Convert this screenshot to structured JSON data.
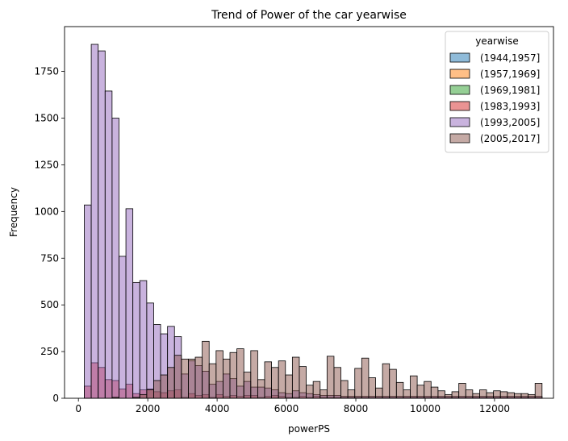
{
  "chart_data": {
    "type": "bar",
    "title": "Trend of Power of the car yearwise",
    "xlabel": "powerPS",
    "ylabel": "Frequency",
    "xlim": [
      -400,
      13700
    ],
    "ylim": [
      0,
      1990
    ],
    "x_ticks": [
      0,
      2000,
      4000,
      6000,
      8000,
      10000,
      12000
    ],
    "y_ticks": [
      0,
      250,
      500,
      750,
      1000,
      1250,
      1500,
      1750
    ],
    "bin_start": 170,
    "bin_width": 200,
    "legend": {
      "title": "yearwise",
      "placement": "top-right"
    },
    "grid": false,
    "series": [
      {
        "name": "(1944,1957]",
        "color": "#1f77b4",
        "values": [
          0,
          0,
          0,
          0,
          0,
          0,
          0,
          0,
          0,
          0,
          0,
          0,
          0,
          0,
          0,
          0,
          0,
          0,
          0,
          0,
          0,
          0,
          0,
          0,
          0,
          0,
          0,
          0,
          0,
          0,
          0,
          0,
          0,
          0,
          0,
          0,
          0,
          0,
          0,
          0,
          0,
          0,
          0,
          0,
          0,
          0,
          0,
          0,
          0,
          0,
          0,
          0,
          0,
          0,
          0,
          0,
          0,
          0,
          0,
          0,
          0,
          0,
          0,
          0,
          0,
          0
        ]
      },
      {
        "name": "(1957,1969]",
        "color": "#ff7f0e",
        "values": [
          0,
          0,
          0,
          0,
          0,
          0,
          0,
          0,
          0,
          0,
          0,
          0,
          0,
          0,
          0,
          0,
          0,
          0,
          0,
          0,
          0,
          0,
          0,
          0,
          0,
          0,
          0,
          0,
          0,
          0,
          0,
          0,
          0,
          0,
          0,
          0,
          0,
          0,
          0,
          0,
          0,
          0,
          0,
          0,
          0,
          0,
          0,
          0,
          0,
          0,
          0,
          0,
          0,
          0,
          0,
          0,
          0,
          0,
          0,
          0,
          0,
          0,
          0,
          0,
          0,
          0
        ]
      },
      {
        "name": "(1969,1981]",
        "color": "#2ca02c",
        "values": [
          0,
          0,
          0,
          0,
          0,
          0,
          0,
          0,
          0,
          0,
          0,
          0,
          0,
          0,
          0,
          0,
          0,
          0,
          0,
          0,
          0,
          0,
          0,
          0,
          0,
          0,
          0,
          0,
          0,
          0,
          0,
          0,
          0,
          0,
          0,
          0,
          0,
          0,
          0,
          0,
          0,
          0,
          0,
          0,
          0,
          0,
          0,
          0,
          0,
          0,
          0,
          0,
          0,
          0,
          0,
          0,
          0,
          0,
          0,
          0,
          0,
          0,
          0,
          0,
          0,
          0
        ]
      },
      {
        "name": "(1983,1993]",
        "color": "#d62728",
        "values": [
          65,
          190,
          165,
          100,
          95,
          50,
          75,
          25,
          45,
          50,
          35,
          30,
          40,
          45,
          5,
          25,
          15,
          20,
          5,
          20,
          10,
          15,
          10,
          15,
          15,
          5,
          10,
          15,
          10,
          5,
          5,
          10,
          5,
          10,
          5,
          5,
          5,
          5,
          5,
          5,
          5,
          5,
          5,
          5,
          5,
          5,
          5,
          5,
          5,
          5,
          5,
          5,
          5,
          5,
          5,
          5,
          5,
          5,
          5,
          5,
          5,
          5,
          5,
          5,
          5,
          5
        ]
      },
      {
        "name": "(1993,2005]",
        "color": "#9467bd",
        "values": [
          1035,
          1895,
          1860,
          1645,
          1500,
          760,
          1015,
          620,
          630,
          510,
          395,
          345,
          385,
          330,
          130,
          200,
          175,
          145,
          75,
          90,
          130,
          105,
          65,
          90,
          60,
          60,
          55,
          45,
          30,
          25,
          40,
          30,
          25,
          20,
          15,
          15,
          15,
          10,
          10,
          10,
          10,
          10,
          10,
          10,
          10,
          10,
          10,
          10,
          10,
          10,
          10,
          10,
          10,
          10,
          10,
          10,
          10,
          10,
          10,
          10,
          10,
          10,
          10,
          10,
          10,
          10
        ]
      },
      {
        "name": "(2005,2017]",
        "color": "#8c564b",
        "values": [
          0,
          0,
          0,
          0,
          5,
          0,
          0,
          5,
          20,
          45,
          95,
          125,
          165,
          230,
          210,
          210,
          220,
          305,
          185,
          255,
          210,
          245,
          265,
          140,
          255,
          100,
          195,
          165,
          200,
          125,
          220,
          170,
          70,
          90,
          45,
          225,
          165,
          95,
          45,
          160,
          215,
          110,
          55,
          185,
          155,
          85,
          45,
          120,
          70,
          90,
          60,
          40,
          20,
          35,
          80,
          45,
          25,
          45,
          30,
          40,
          35,
          30,
          25,
          25,
          20,
          80
        ]
      }
    ]
  }
}
